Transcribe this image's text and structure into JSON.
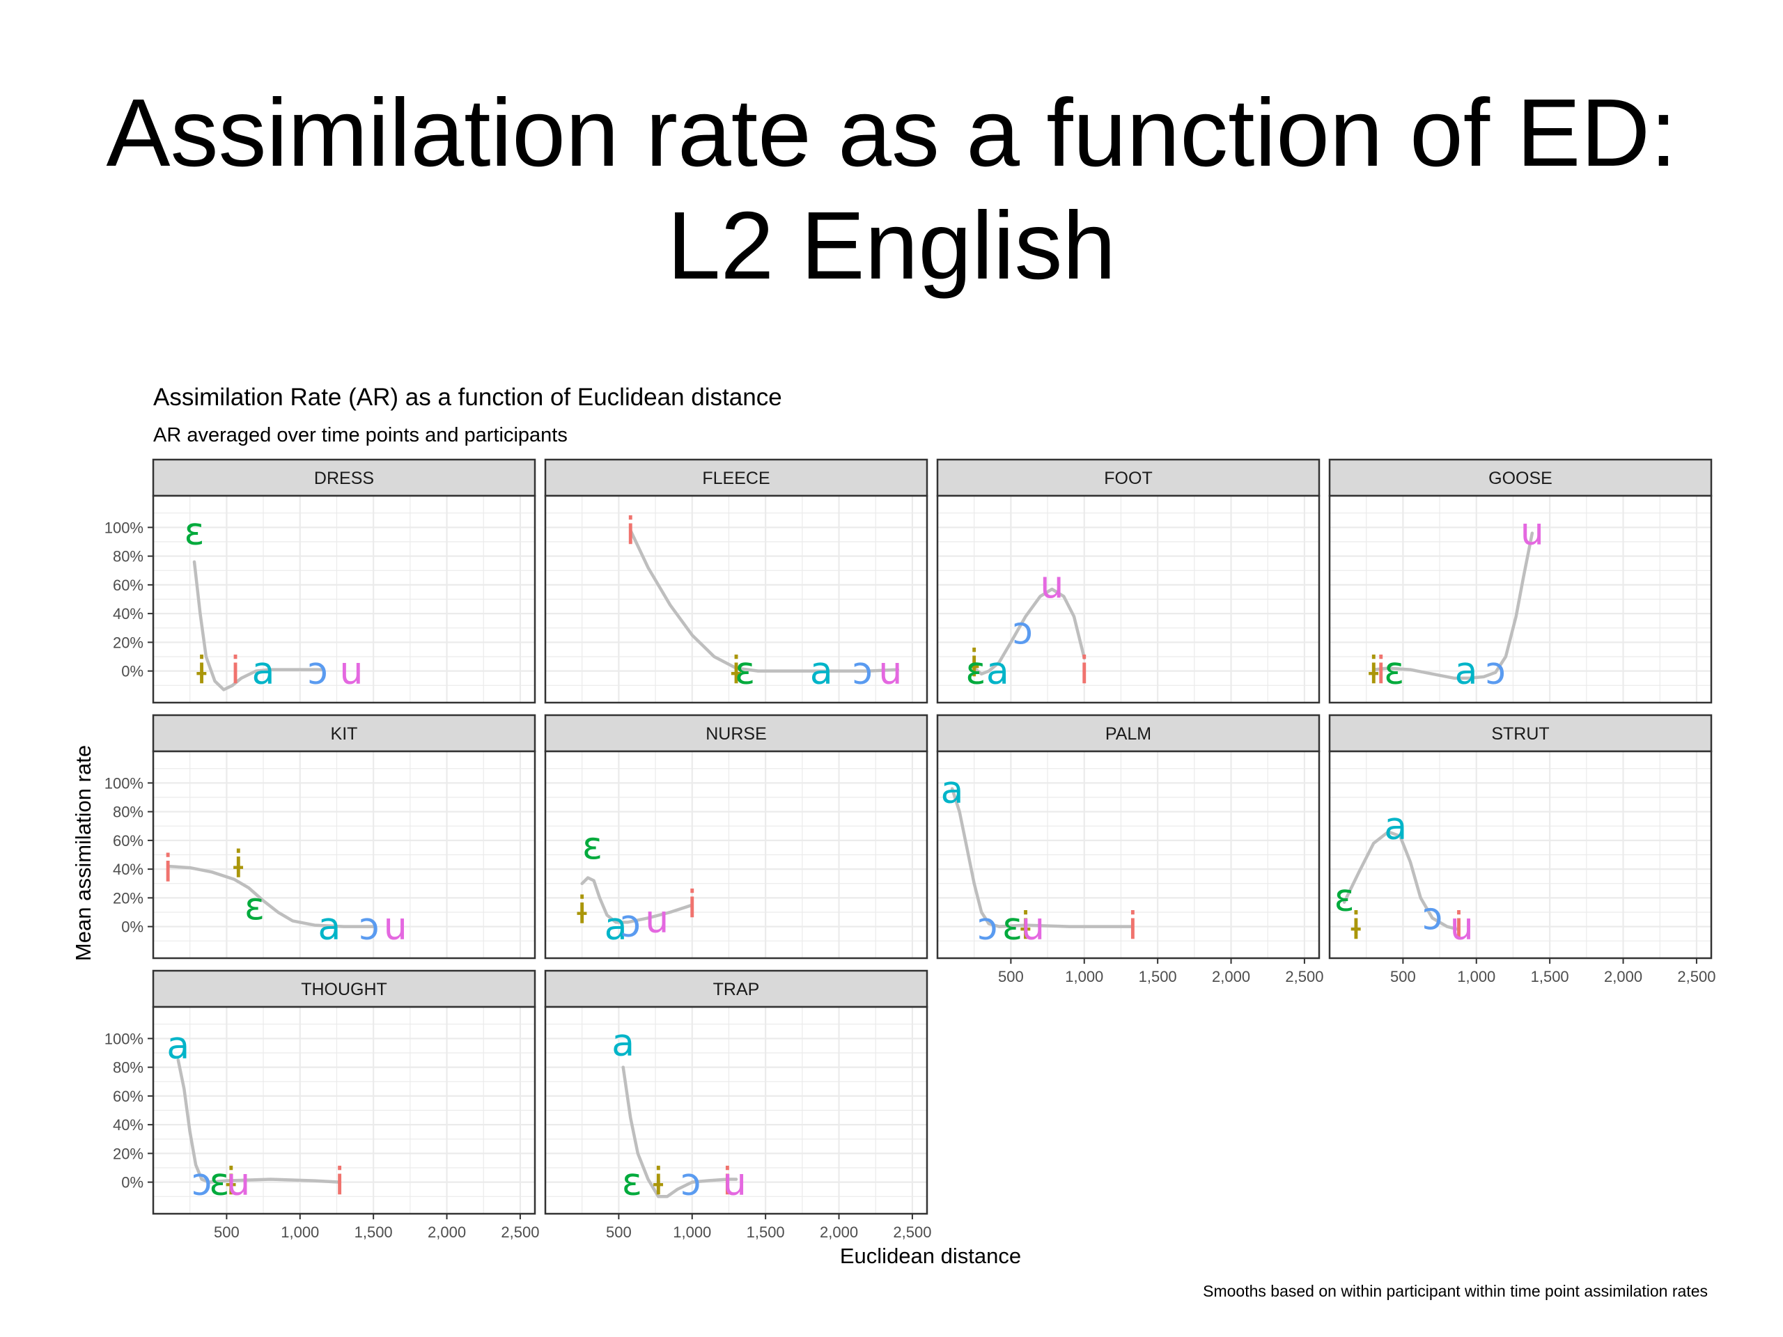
{
  "slide": {
    "title_line1": "Assimilation rate as a function of ED:",
    "title_line2": "L2 English"
  },
  "chart_data": {
    "type": "scatter",
    "title": "Assimilation Rate (AR) as a function of Euclidean distance",
    "subtitle": "AR averaged over time points and participants",
    "xlabel": "Euclidean distance",
    "ylabel": "Mean assimilation rate",
    "caption": "Smooths based on within participant within time point assimilation rates",
    "xlim": [
      0,
      2600
    ],
    "ylim": [
      -22,
      122
    ],
    "x_ticks": [
      500,
      1000,
      1500,
      2000,
      2500
    ],
    "x_tick_labels": [
      "500",
      "1,000",
      "1,500",
      "2,000",
      "2,500"
    ],
    "y_ticks": [
      0,
      20,
      40,
      60,
      80,
      100
    ],
    "y_tick_labels": [
      "0%",
      "20%",
      "40%",
      "60%",
      "80%",
      "100%"
    ],
    "grid": true,
    "colors": {
      "a": "#00B4C8",
      "ɔ": "#5A9BF0",
      "ɛ": "#00AA3C",
      "i": "#F0736E",
      "ɨ": "#AA960A",
      "u": "#E468E0",
      "smooth": "#BEBEBE",
      "strip_fill": "#D9D9D9",
      "panel_border": "#333333",
      "grid": "#EBEBEB"
    },
    "panels": [
      {
        "name": "DRESS",
        "points": [
          {
            "label": "ɛ",
            "x": 280,
            "y": 97
          },
          {
            "label": "ɨ",
            "x": 330,
            "y": 0
          },
          {
            "label": "i",
            "x": 560,
            "y": 0
          },
          {
            "label": "a",
            "x": 750,
            "y": 0
          },
          {
            "label": "ɔ",
            "x": 1120,
            "y": 0
          },
          {
            "label": "u",
            "x": 1350,
            "y": 0
          }
        ],
        "smooth": [
          [
            280,
            76
          ],
          [
            320,
            40
          ],
          [
            360,
            10
          ],
          [
            420,
            -7
          ],
          [
            480,
            -13
          ],
          [
            540,
            -10
          ],
          [
            600,
            -5
          ],
          [
            700,
            0
          ],
          [
            800,
            1
          ],
          [
            1000,
            1
          ],
          [
            1150,
            1
          ]
        ]
      },
      {
        "name": "FLEECE",
        "points": [
          {
            "label": "i",
            "x": 580,
            "y": 97
          },
          {
            "label": "ɨ",
            "x": 1300,
            "y": 0
          },
          {
            "label": "ɛ",
            "x": 1360,
            "y": 0
          },
          {
            "label": "a",
            "x": 1880,
            "y": 0
          },
          {
            "label": "ɔ",
            "x": 2160,
            "y": 0
          },
          {
            "label": "u",
            "x": 2350,
            "y": 0
          }
        ],
        "smooth": [
          [
            580,
            98
          ],
          [
            700,
            72
          ],
          [
            850,
            46
          ],
          [
            1000,
            25
          ],
          [
            1150,
            10
          ],
          [
            1300,
            2
          ],
          [
            1450,
            0
          ],
          [
            1800,
            0
          ],
          [
            2200,
            0
          ],
          [
            2400,
            1
          ]
        ]
      },
      {
        "name": "FOOT",
        "points": [
          {
            "label": "ɨ",
            "x": 250,
            "y": 5
          },
          {
            "label": "ɛ",
            "x": 260,
            "y": 0
          },
          {
            "label": "a",
            "x": 410,
            "y": 0
          },
          {
            "label": "ɔ",
            "x": 580,
            "y": 28
          },
          {
            "label": "u",
            "x": 780,
            "y": 60
          },
          {
            "label": "i",
            "x": 1000,
            "y": 0
          }
        ],
        "smooth": [
          [
            250,
            2
          ],
          [
            300,
            -2
          ],
          [
            350,
            0
          ],
          [
            420,
            6
          ],
          [
            500,
            20
          ],
          [
            600,
            38
          ],
          [
            700,
            52
          ],
          [
            780,
            57
          ],
          [
            860,
            52
          ],
          [
            930,
            38
          ],
          [
            1000,
            9
          ]
        ]
      },
      {
        "name": "GOOSE",
        "points": [
          {
            "label": "ɨ",
            "x": 300,
            "y": 0
          },
          {
            "label": "i",
            "x": 350,
            "y": 0
          },
          {
            "label": "ɛ",
            "x": 440,
            "y": 0
          },
          {
            "label": "a",
            "x": 930,
            "y": 0
          },
          {
            "label": "ɔ",
            "x": 1130,
            "y": 0
          },
          {
            "label": "u",
            "x": 1380,
            "y": 97
          }
        ],
        "smooth": [
          [
            300,
            1
          ],
          [
            400,
            2
          ],
          [
            550,
            1
          ],
          [
            700,
            -2
          ],
          [
            850,
            -5
          ],
          [
            950,
            -5
          ],
          [
            1050,
            -4
          ],
          [
            1130,
            -1
          ],
          [
            1200,
            10
          ],
          [
            1270,
            38
          ],
          [
            1320,
            65
          ],
          [
            1380,
            96
          ]
        ]
      },
      {
        "name": "KIT",
        "points": [
          {
            "label": "i",
            "x": 100,
            "y": 40
          },
          {
            "label": "ɨ",
            "x": 580,
            "y": 43
          },
          {
            "label": "ɛ",
            "x": 690,
            "y": 14
          },
          {
            "label": "a",
            "x": 1200,
            "y": 0
          },
          {
            "label": "ɔ",
            "x": 1470,
            "y": 0
          },
          {
            "label": "u",
            "x": 1650,
            "y": 0
          }
        ],
        "smooth": [
          [
            100,
            42
          ],
          [
            250,
            41
          ],
          [
            400,
            38
          ],
          [
            550,
            33
          ],
          [
            650,
            27
          ],
          [
            750,
            18
          ],
          [
            850,
            10
          ],
          [
            950,
            4
          ],
          [
            1100,
            1
          ],
          [
            1300,
            0
          ],
          [
            1500,
            0
          ]
        ]
      },
      {
        "name": "NURSE",
        "points": [
          {
            "label": "ɨ",
            "x": 250,
            "y": 11
          },
          {
            "label": "ɛ",
            "x": 320,
            "y": 56
          },
          {
            "label": "a",
            "x": 480,
            "y": 0
          },
          {
            "label": "ɔ",
            "x": 580,
            "y": 2
          },
          {
            "label": "u",
            "x": 760,
            "y": 5
          },
          {
            "label": "i",
            "x": 1000,
            "y": 15
          }
        ],
        "smooth": [
          [
            250,
            30
          ],
          [
            290,
            34
          ],
          [
            330,
            32
          ],
          [
            370,
            20
          ],
          [
            420,
            8
          ],
          [
            480,
            3
          ],
          [
            560,
            3
          ],
          [
            700,
            6
          ],
          [
            850,
            10
          ],
          [
            1000,
            15
          ]
        ]
      },
      {
        "name": "PALM",
        "points": [
          {
            "label": "a",
            "x": 100,
            "y": 95
          },
          {
            "label": "ɔ",
            "x": 340,
            "y": 0
          },
          {
            "label": "ɛ",
            "x": 510,
            "y": 0
          },
          {
            "label": "ɨ",
            "x": 600,
            "y": 0
          },
          {
            "label": "u",
            "x": 650,
            "y": 0
          },
          {
            "label": "i",
            "x": 1330,
            "y": 0
          }
        ],
        "smooth": [
          [
            100,
            96
          ],
          [
            150,
            80
          ],
          [
            200,
            55
          ],
          [
            250,
            30
          ],
          [
            300,
            10
          ],
          [
            350,
            2
          ],
          [
            420,
            0
          ],
          [
            600,
            1
          ],
          [
            900,
            0
          ],
          [
            1330,
            0
          ]
        ]
      },
      {
        "name": "STRUT",
        "points": [
          {
            "label": "ɛ",
            "x": 100,
            "y": 20
          },
          {
            "label": "ɨ",
            "x": 180,
            "y": 0
          },
          {
            "label": "a",
            "x": 450,
            "y": 70
          },
          {
            "label": "ɔ",
            "x": 700,
            "y": 7
          },
          {
            "label": "i",
            "x": 880,
            "y": 0
          },
          {
            "label": "u",
            "x": 900,
            "y": 0
          }
        ],
        "smooth": [
          [
            100,
            17
          ],
          [
            200,
            38
          ],
          [
            300,
            58
          ],
          [
            400,
            66
          ],
          [
            480,
            63
          ],
          [
            550,
            45
          ],
          [
            620,
            20
          ],
          [
            700,
            6
          ],
          [
            800,
            0
          ],
          [
            880,
            -2
          ]
        ]
      },
      {
        "name": "THOUGHT",
        "points": [
          {
            "label": "a",
            "x": 170,
            "y": 95
          },
          {
            "label": "ɔ",
            "x": 330,
            "y": 0
          },
          {
            "label": "ɛ",
            "x": 450,
            "y": 0
          },
          {
            "label": "ɨ",
            "x": 530,
            "y": 0
          },
          {
            "label": "u",
            "x": 580,
            "y": 0
          },
          {
            "label": "i",
            "x": 1270,
            "y": 0
          }
        ],
        "smooth": [
          [
            170,
            85
          ],
          [
            210,
            65
          ],
          [
            250,
            35
          ],
          [
            290,
            12
          ],
          [
            330,
            2
          ],
          [
            380,
            0
          ],
          [
            500,
            1
          ],
          [
            800,
            2
          ],
          [
            1100,
            1
          ],
          [
            1270,
            0
          ]
        ]
      },
      {
        "name": "TRAP",
        "points": [
          {
            "label": "a",
            "x": 530,
            "y": 97
          },
          {
            "label": "ɛ",
            "x": 590,
            "y": 0
          },
          {
            "label": "ɨ",
            "x": 770,
            "y": 0
          },
          {
            "label": "ɔ",
            "x": 990,
            "y": 0
          },
          {
            "label": "i",
            "x": 1240,
            "y": 0
          },
          {
            "label": "u",
            "x": 1290,
            "y": 0
          }
        ],
        "smooth": [
          [
            530,
            80
          ],
          [
            580,
            45
          ],
          [
            630,
            20
          ],
          [
            700,
            2
          ],
          [
            770,
            -10
          ],
          [
            830,
            -10
          ],
          [
            900,
            -5
          ],
          [
            1000,
            0
          ],
          [
            1100,
            1
          ],
          [
            1240,
            2
          ],
          [
            1300,
            2
          ]
        ]
      }
    ]
  }
}
